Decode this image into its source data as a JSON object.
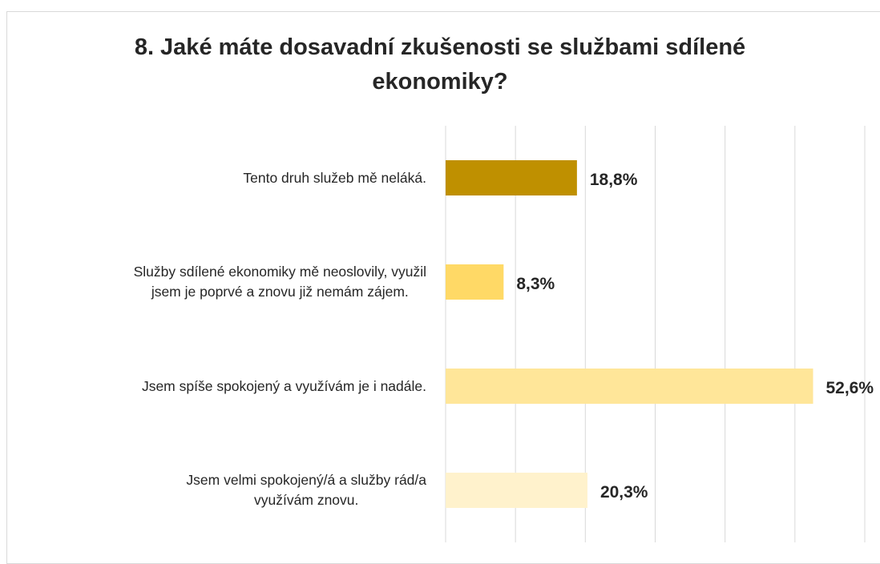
{
  "chart_data": {
    "type": "bar",
    "orientation": "horizontal",
    "title": "8. Jaké máte dosavadní zkušenosti se službami sdílené ekonomiky?",
    "categories": [
      "Tento druh služeb mě neláká.",
      "Služby sdílené ekonomiky mě neoslovily, využil\njsem je poprvé a znovu již nemám zájem.",
      "Jsem spíše spokojený a využívám je i nadále.",
      "Jsem velmi spokojený/á a služby rád/a\nvyužívám znovu."
    ],
    "values": [
      18.8,
      8.3,
      52.6,
      20.3
    ],
    "value_labels": [
      "18,8%",
      "8,3%",
      "52,6%",
      "20,3%"
    ],
    "colors": [
      "#bf9000",
      "#ffd966",
      "#ffe699",
      "#fff2cc"
    ],
    "xlim": [
      0,
      60
    ],
    "xticks": [
      0,
      10,
      20,
      30,
      40,
      50,
      60
    ],
    "grid": true
  }
}
